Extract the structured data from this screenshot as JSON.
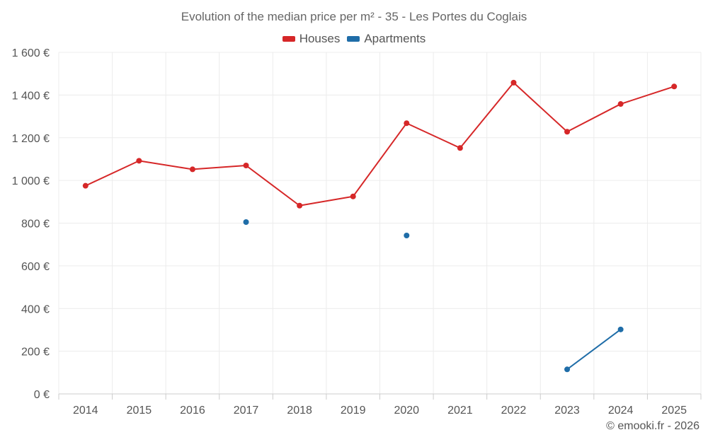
{
  "chart_data": {
    "type": "line",
    "title": "Evolution of the median price per m² - 35 - Les Portes du Coglais",
    "categories": [
      "2014",
      "2015",
      "2016",
      "2017",
      "2018",
      "2019",
      "2020",
      "2021",
      "2022",
      "2023",
      "2024",
      "2025"
    ],
    "series": [
      {
        "name": "Houses",
        "color": "#d62728",
        "values": [
          975,
          1092,
          1052,
          1070,
          882,
          925,
          1268,
          1152,
          1458,
          1228,
          1358,
          1440
        ]
      },
      {
        "name": "Apartments",
        "color": "#1f6da8",
        "values": [
          null,
          null,
          null,
          805,
          null,
          null,
          742,
          null,
          null,
          115,
          302,
          null
        ]
      }
    ],
    "y_ticks": [
      "0 €",
      "200 €",
      "400 €",
      "600 €",
      "800 €",
      "1 000 €",
      "1 200 €",
      "1 400 €",
      "1 600 €"
    ],
    "ylim": [
      0,
      1600
    ],
    "xlabel": "",
    "ylabel": "",
    "grid": true,
    "legend_position": "top-center"
  },
  "credit": "© emooki.fr - 2026"
}
